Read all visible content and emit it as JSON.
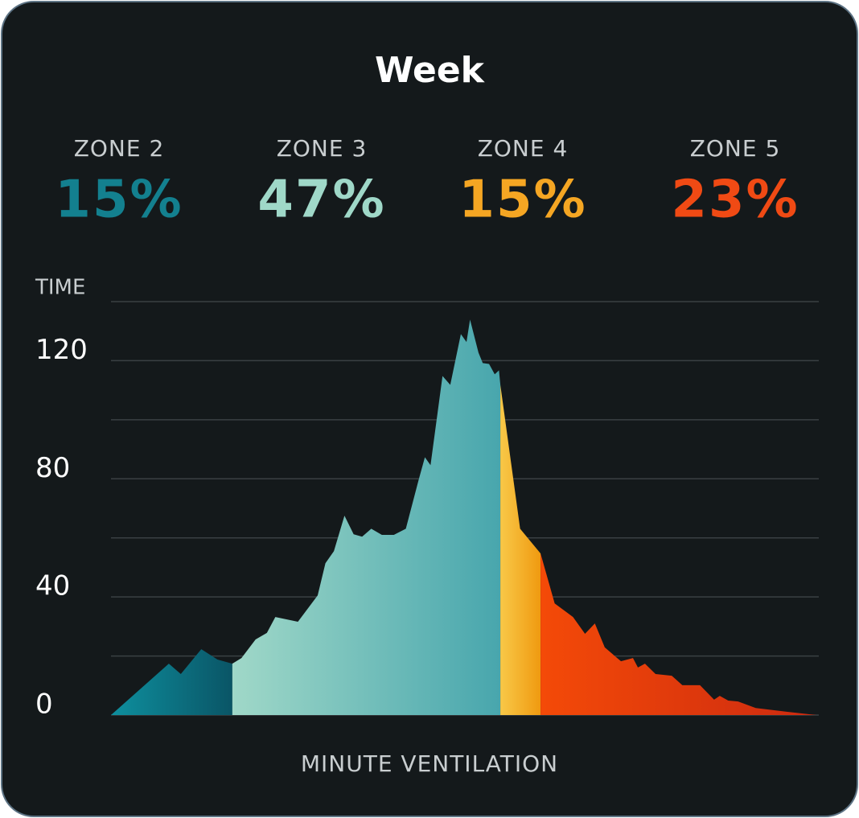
{
  "chart_data": {
    "type": "area",
    "title": "Week",
    "y_label": "TIME",
    "x_label": "MINUTE VENTILATION",
    "ylim": [
      0,
      140
    ],
    "yticks": [
      0,
      40,
      80,
      120
    ],
    "grid_yticks": [
      20,
      60,
      100,
      140
    ],
    "xlim": [
      0,
      100
    ],
    "x": [
      0,
      8.2,
      9.9,
      12.8,
      15.1,
      17.2,
      18.5,
      20.5,
      22.1,
      23.3,
      26.5,
      29.3,
      30.4,
      31.6,
      33.1,
      34.4,
      35.6,
      36.9,
      38.4,
      40.1,
      41.8,
      43.6,
      44.5,
      45.3,
      47.0,
      48.1,
      49.6,
      50.4,
      50.9,
      52.1,
      52.7,
      53.6,
      54.4,
      55.0,
      55.2,
      58.0,
      60.9,
      62.9,
      65.5,
      67.2,
      68.6,
      70.0,
      72.3,
      74.0,
      74.7,
      75.7,
      77.2,
      79.5,
      81.0,
      83.5,
      85.5,
      86.3,
      87.5,
      88.9,
      91.4,
      95.9,
      100
    ],
    "values": [
      0,
      17.4,
      13.9,
      22.3,
      18.8,
      17.4,
      19.3,
      25.6,
      27.8,
      33.2,
      31.6,
      40.5,
      51.4,
      55.5,
      67.5,
      61.2,
      60.4,
      63.1,
      61,
      61,
      63.1,
      79.5,
      87.3,
      84.6,
      114.8,
      111.8,
      129,
      126.3,
      133.9,
      122.7,
      119.2,
      118.9,
      115.4,
      116.7,
      111.8,
      63.1,
      54.7,
      37.8,
      33.2,
      27.5,
      31,
      22.9,
      18.2,
      19.3,
      16.1,
      17.4,
      13.9,
      13.3,
      10.1,
      10.1,
      5.2,
      6.5,
      4.9,
      4.6,
      2.4,
      1.1,
      0
    ],
    "zones": [
      {
        "name": "ZONE 2",
        "value": 15,
        "value_label": "15%",
        "color": "#13808f",
        "gradient": [
          "#0e8f9e",
          "#0a5566"
        ],
        "x_range": [
          0,
          17.2
        ]
      },
      {
        "name": "ZONE 3",
        "value": 47,
        "value_label": "47%",
        "color": "#9fd8c8",
        "gradient": [
          "#a0d8c8",
          "#48a6ad"
        ],
        "x_range": [
          17.2,
          55.2
        ]
      },
      {
        "name": "ZONE 4",
        "value": 15,
        "value_label": "15%",
        "color": "#f5a623",
        "gradient": [
          "#f8c848",
          "#f09a10"
        ],
        "x_range": [
          55.2,
          60.9
        ]
      },
      {
        "name": "ZONE 5",
        "value": 23,
        "value_label": "23%",
        "color": "#f04a14",
        "gradient": [
          "#f44a08",
          "#cc2a10"
        ],
        "x_range": [
          60.9,
          100
        ]
      }
    ]
  }
}
